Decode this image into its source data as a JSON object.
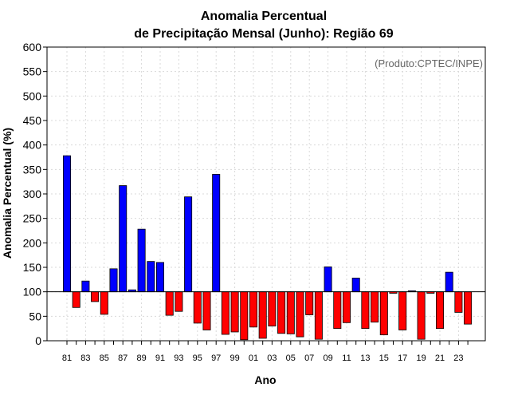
{
  "chart_data": {
    "type": "bar",
    "title": [
      "Anomalia Percentual",
      "de Precipitação Mensal (Junho): Região 69"
    ],
    "xlabel": "Ano",
    "ylabel": "Anomalia Percentual (%)",
    "credit": "(Produto:CPTEC/INPE)",
    "ylim": [
      0,
      600
    ],
    "yticks": [
      0,
      50,
      100,
      150,
      200,
      250,
      300,
      350,
      400,
      450,
      500,
      550,
      600
    ],
    "baseline": 100,
    "years": [
      "81",
      "82",
      "83",
      "84",
      "85",
      "86",
      "87",
      "88",
      "89",
      "90",
      "91",
      "92",
      "93",
      "94",
      "95",
      "96",
      "97",
      "98",
      "99",
      "00",
      "01",
      "02",
      "03",
      "04",
      "05",
      "06",
      "07",
      "08",
      "09",
      "10",
      "11",
      "12",
      "13",
      "14",
      "15",
      "16",
      "17",
      "18",
      "19",
      "20",
      "21",
      "22",
      "23",
      "24"
    ],
    "xtick_labels": [
      "81",
      "83",
      "85",
      "87",
      "89",
      "91",
      "93",
      "95",
      "97",
      "99",
      "01",
      "03",
      "05",
      "07",
      "09",
      "11",
      "13",
      "15",
      "17",
      "19",
      "21",
      "23"
    ],
    "values": [
      378,
      68,
      122,
      80,
      54,
      147,
      317,
      104,
      228,
      162,
      160,
      52,
      60,
      294,
      36,
      22,
      340,
      13,
      18,
      2,
      28,
      5,
      30,
      15,
      14,
      8,
      53,
      3,
      151,
      25,
      37,
      128,
      25,
      38,
      12,
      97,
      22,
      102,
      3,
      97,
      25,
      140,
      58,
      34
    ],
    "colors": {
      "above": "#0000ff",
      "below": "#ff0000"
    }
  }
}
